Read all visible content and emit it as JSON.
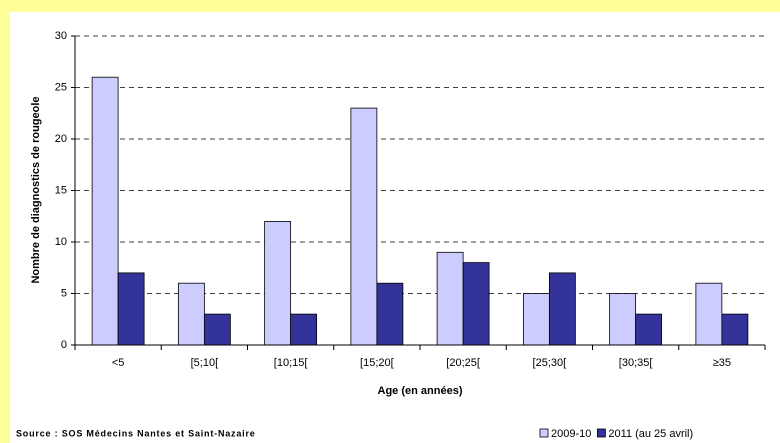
{
  "chart_data": {
    "type": "bar",
    "y_label": "Nombre de diagnostics de rougeole",
    "x_label": "Age (en années)",
    "source": "Source : SOS Médecins Nantes et Saint-Nazaire",
    "categories": [
      "<5",
      "[5;10[",
      "[10;15[",
      "[15;20[",
      "[20;25[",
      "[25;30[",
      "[30;35[",
      "≥35"
    ],
    "series": [
      {
        "name": "2009-10",
        "color": "#ccccff",
        "values": [
          26,
          6,
          12,
          23,
          9,
          5,
          5,
          6
        ]
      },
      {
        "name": "2011 (au 25 avril)",
        "color": "#333399",
        "values": [
          7,
          3,
          3,
          6,
          8,
          7,
          3,
          3
        ]
      }
    ],
    "ylim": [
      0,
      30
    ],
    "yticks": [
      0,
      5,
      10,
      15,
      20,
      25,
      30
    ],
    "grid": true
  }
}
